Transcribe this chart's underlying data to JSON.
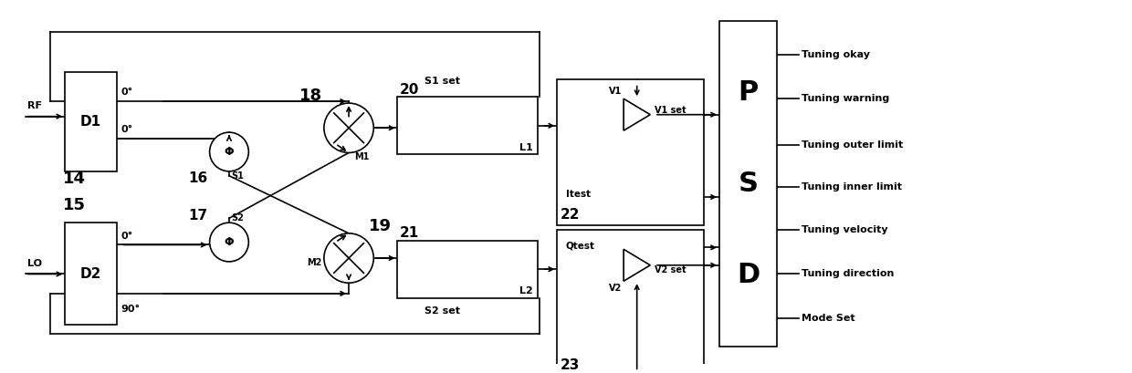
{
  "bg_color": "#ffffff",
  "line_color": "#000000",
  "text_color": "#000000",
  "fig_width": 12.4,
  "fig_height": 4.09,
  "labels": {
    "rf_label": "RF",
    "lo_label": "LO",
    "d1_label": "D1",
    "d2_label": "D2",
    "num14": "14",
    "num15": "15",
    "num16": "16",
    "num17": "17",
    "num18": "18",
    "num19": "19",
    "num20": "20",
    "num21": "21",
    "num22": "22",
    "num23": "23",
    "s1_label": "S1",
    "s2_label": "S2",
    "m1_label": "M1",
    "m2_label": "M2",
    "l1_label": "L1",
    "l2_label": "L2",
    "dsp_d": "D",
    "dsp_s": "S",
    "dsp_p": "P",
    "s1_set": "S1 set",
    "s2_set": "S2 set",
    "v1_set": "V1 set",
    "v2_set": "V2 set",
    "itest": "Itest",
    "qtest": "Qtest",
    "v1_label": "V1",
    "v2_label": "V2",
    "deg0_1": "0°",
    "deg0_2": "0°",
    "deg0_3": "0°",
    "deg90": "90°",
    "tuning_okay": "Tuning okay",
    "tuning_warning": "Tuning warning",
    "tuning_outer": "Tuning outer limit",
    "tuning_inner": "Tuning inner limit",
    "tuning_velocity": "Tuning velocity",
    "tuning_direction": "Tuning direction",
    "mode_set": "Mode Set"
  }
}
